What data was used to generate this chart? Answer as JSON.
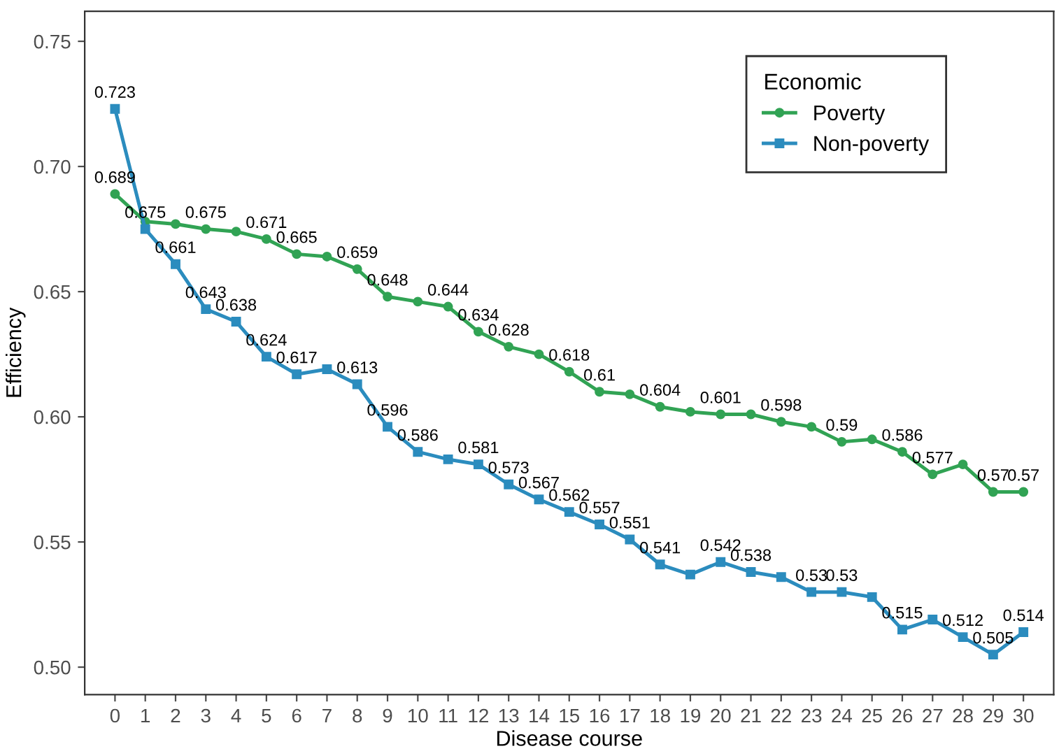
{
  "chart_data": {
    "type": "line",
    "xlabel": "Disease course",
    "ylabel": "Efficiency",
    "legend_title": "Economic",
    "legend": "top right",
    "grid": false,
    "categories": [
      "0",
      "1",
      "2",
      "3",
      "4",
      "5",
      "6",
      "7",
      "8",
      "9",
      "10",
      "11",
      "12",
      "13",
      "14",
      "15",
      "16",
      "17",
      "18",
      "19",
      "20",
      "21",
      "22",
      "23",
      "24",
      "25",
      "26",
      "27",
      "28",
      "29",
      "30"
    ],
    "ylim": [
      0.489,
      0.762
    ],
    "yticks": [
      {
        "value": 0.5,
        "label": "0.50"
      },
      {
        "value": 0.55,
        "label": "0.55"
      },
      {
        "value": 0.6,
        "label": "0.60"
      },
      {
        "value": 0.65,
        "label": "0.65"
      },
      {
        "value": 0.7,
        "label": "0.70"
      },
      {
        "value": 0.75,
        "label": "0.75"
      }
    ],
    "series": [
      {
        "name": "Poverty",
        "color": "#31a354",
        "marker": "circle",
        "values": [
          0.689,
          0.678,
          0.677,
          0.675,
          0.674,
          0.671,
          0.665,
          0.664,
          0.659,
          0.648,
          0.646,
          0.644,
          0.634,
          0.628,
          0.625,
          0.618,
          0.61,
          0.609,
          0.604,
          0.602,
          0.601,
          0.601,
          0.598,
          0.596,
          0.59,
          0.591,
          0.586,
          0.577,
          0.581,
          0.57,
          0.57
        ],
        "value_labels": [
          "0.689",
          null,
          null,
          "0.675",
          null,
          "0.671",
          "0.665",
          null,
          "0.659",
          "0.648",
          null,
          "0.644",
          "0.634",
          "0.628",
          null,
          "0.618",
          "0.61",
          null,
          "0.604",
          null,
          "0.601",
          null,
          "0.598",
          null,
          "0.59",
          null,
          "0.586",
          "0.577",
          null,
          "0.57",
          "0.57"
        ]
      },
      {
        "name": "Non-poverty",
        "color": "#2b8cbe",
        "marker": "square",
        "values": [
          0.723,
          0.675,
          0.661,
          0.643,
          0.638,
          0.624,
          0.617,
          0.619,
          0.613,
          0.596,
          0.586,
          0.583,
          0.581,
          0.573,
          0.567,
          0.562,
          0.557,
          0.551,
          0.541,
          0.537,
          0.542,
          0.538,
          0.536,
          0.53,
          0.53,
          0.528,
          0.515,
          0.519,
          0.512,
          0.505,
          0.514
        ],
        "value_labels": [
          "0.723",
          "0.675",
          "0.661",
          "0.643",
          "0.638",
          "0.624",
          "0.617",
          null,
          "0.613",
          "0.596",
          "0.586",
          null,
          "0.581",
          "0.573",
          "0.567",
          "0.562",
          "0.557",
          "0.551",
          "0.541",
          null,
          "0.542",
          "0.538",
          null,
          "0.53",
          "0.53",
          null,
          "0.515",
          null,
          "0.512",
          "0.505",
          "0.514"
        ]
      }
    ]
  }
}
